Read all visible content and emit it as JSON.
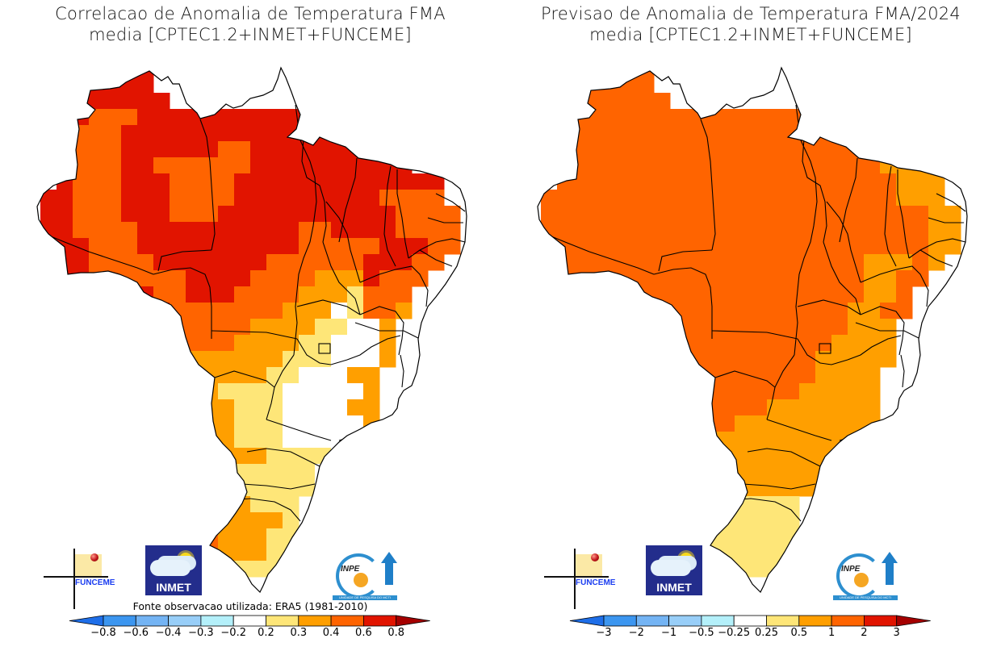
{
  "legend_classes_colors": [
    "#1e6ee8",
    "#3c96f0",
    "#74b4f4",
    "#98cef8",
    "#b4f0fa",
    "#ffffff",
    "#fee678",
    "#ff9f00",
    "#ff6400",
    "#e11400",
    "#a50000"
  ],
  "panels": [
    {
      "id": "correlation",
      "title_line1": "Correlacao de Anomalia de Temperatura FMA",
      "title_line2": "media [CPTEC1.2+INMET+FUNCEME]",
      "source_note": "Fonte observacao utilizada: ERA5 (1981-2010)",
      "colorbar": {
        "tick_labels": [
          "-0.8",
          "-0.6",
          "-0.4",
          "-0.3",
          "-0.2",
          "0.2",
          "0.3",
          "0.4",
          "0.6",
          "0.8"
        ]
      },
      "logos": [
        "FUNCEME",
        "INMET",
        "INPE"
      ],
      "inpe_banner": "UNIDADE DE PESQUISA DO MCTI",
      "grid_legend": "cells: 0=white(-0.2..0.2) 1=0.2..0.3 2=0.3..0.4 3=0.4..0.6 4=0.6..0.8",
      "grid": [
        "....4444....................",
        "....4444...........00.......",
        "...444444....0000333........",
        "..443334444444444443........",
        "..433344444444444444........",
        "..43334444443344444444......",
        "..4333443333334444444444....",
        "..433344433334444444444444..",
        ".4433344433334444444443333..",
        ".44333444333444444444443333.",
        ".44333344444444443344443333.",
        ".44433344444444443333344433.",
        ".4443333444444433333344433..",
        ".444333333444433332224333...",
        "..4444443344433332221333....",
        "....44444333333322201332....",
        "......43333333222211002.....",
        "......33333332222110002.....",
        ".......3332222221110002.....",
        ".......222222221100022......",
        "......1122221111000002......",
        "......1222222111000022......",
        "......1222322111000002......",
        ".......12222211100000.......",
        ".........222222111100.......",
        ".........22221111100........",
        ".........2222111110.........",
        "........333322111...........",
        ".......3333322221...........",
        "......33333322211...........",
        ".......3333322211...........",
        "........33322111............",
        ".........2221...............",
        "............................"
      ]
    },
    {
      "id": "forecast",
      "title_line1": "Previsao de Anomalia de Temperatura FMA/2024",
      "title_line2": "media [CPTEC1.2+INMET+FUNCEME]",
      "source_note": "",
      "colorbar": {
        "tick_labels": [
          "-3",
          "-2",
          "-1",
          "-0.5",
          "-0.25",
          "0.25",
          "0.5",
          "1",
          "2",
          "3"
        ]
      },
      "logos": [
        "FUNCEME",
        "INMET",
        "INPE"
      ],
      "inpe_banner": "UNIDADE DE PESQUISA DO MCTI",
      "grid_legend": "cells: 0=white(-0.25..0.25) 1=0.25..0.5 2=0.5..1 3=1..2 4=2..3",
      "grid": [
        "....3333....................",
        "....3333...........00.......",
        "...333333....0000333........",
        "..333333333333333333........",
        "..333333333333333333........",
        "..3333333333333333333322....",
        "..333333333333333333332222..",
        "..333333333333333333333222..",
        ".3333333333333333333333222..",
        ".33333333333333333333333322.",
        ".33333333333333333333333322.",
        ".33333333333333333333333322.",
        ".3333333333333333333322232..",
        ".333333333333333333332233...",
        "..3333333333333333333223....",
        "....33333333333333332233....",
        "......33333333333333222.....",
        "......33333333333332222.....",
        ".......3333333333322222.....",
        ".......333333333332222......",
        "......3333333333322222......",
        "......3333333332222222......",
        "......3333333222222222......",
        ".......33332222222222.......",
        ".........222222222222.......",
        ".........22222222222........",
        ".........2222222222.........",
        "........222211111...........",
        ".......2222111111...........",
        "......22221111111...........",
        ".......1111111111...........",
        "........11111111............",
        ".........1111...............",
        "............................"
      ]
    }
  ]
}
